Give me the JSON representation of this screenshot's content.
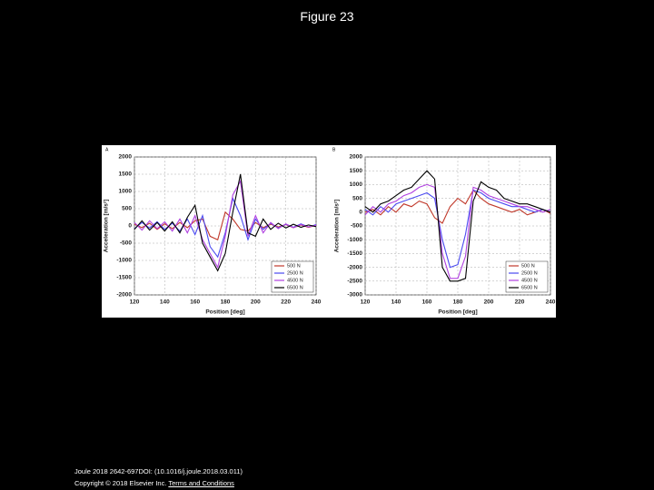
{
  "title": "Figure 23",
  "chart_data": [
    {
      "type": "line",
      "panel_label": "A",
      "x_label": "Position [deg]",
      "y_label": "Acceleration [m/s²]",
      "x": [
        120,
        125,
        130,
        135,
        140,
        145,
        150,
        155,
        160,
        165,
        170,
        175,
        180,
        185,
        190,
        195,
        200,
        205,
        210,
        215,
        220,
        225,
        230,
        235,
        240
      ],
      "series": [
        {
          "name": "500 N",
          "color": "#c0392b",
          "values": [
            50,
            -50,
            80,
            -100,
            60,
            -80,
            100,
            -50,
            150,
            200,
            -300,
            -400,
            400,
            200,
            -100,
            -150,
            100,
            -50,
            50,
            -30,
            40,
            -50,
            30,
            -40,
            20
          ]
        },
        {
          "name": "2500 N",
          "color": "#4a4af0",
          "values": [
            -80,
            100,
            -60,
            120,
            -100,
            80,
            -150,
            200,
            -250,
            300,
            -600,
            -900,
            -200,
            800,
            300,
            -400,
            200,
            -100,
            80,
            -60,
            50,
            -40,
            60,
            -30,
            40
          ]
        },
        {
          "name": "4500 N",
          "color": "#b040e0",
          "values": [
            100,
            -120,
            150,
            -80,
            120,
            -150,
            200,
            -200,
            300,
            -400,
            -800,
            -1200,
            -300,
            900,
            1300,
            -300,
            300,
            -200,
            100,
            -80,
            60,
            -50,
            40,
            -30,
            20
          ]
        },
        {
          "name": "6500 N",
          "color": "#000000",
          "values": [
            -100,
            150,
            -120,
            100,
            -150,
            120,
            -200,
            250,
            600,
            -500,
            -900,
            -1300,
            -800,
            400,
            1500,
            -200,
            -300,
            200,
            -100,
            80,
            -60,
            50,
            -40,
            30,
            -20
          ]
        }
      ],
      "xlim": [
        120,
        240
      ],
      "xticks": [
        120,
        140,
        160,
        180,
        200,
        220,
        240
      ],
      "ylim": [
        -2000,
        2000
      ],
      "yticks": [
        2000,
        1500,
        1000,
        500,
        0,
        -500,
        -1000,
        -1500,
        -2000
      ],
      "grid": true,
      "legend": "lower right"
    },
    {
      "type": "line",
      "panel_label": "B",
      "x_label": "Position [deg]",
      "y_label": "Acceleration [m/s²]",
      "x": [
        120,
        125,
        130,
        135,
        140,
        145,
        150,
        155,
        160,
        165,
        170,
        175,
        180,
        185,
        190,
        195,
        200,
        205,
        210,
        215,
        220,
        225,
        230,
        235,
        240
      ],
      "series": [
        {
          "name": "500 N",
          "color": "#c0392b",
          "values": [
            0,
            100,
            -100,
            200,
            0,
            300,
            200,
            400,
            300,
            -200,
            -400,
            200,
            500,
            300,
            800,
            500,
            300,
            200,
            100,
            0,
            100,
            -100,
            0,
            100,
            -50
          ]
        },
        {
          "name": "2500 N",
          "color": "#4a4af0",
          "values": [
            100,
            -100,
            200,
            0,
            300,
            400,
            500,
            600,
            700,
            500,
            -1000,
            -2000,
            -1900,
            -800,
            800,
            700,
            500,
            400,
            300,
            200,
            200,
            100,
            0,
            100,
            0
          ]
        },
        {
          "name": "4500 N",
          "color": "#b040e0",
          "values": [
            -100,
            200,
            0,
            300,
            400,
            600,
            700,
            900,
            1000,
            900,
            -1500,
            -2400,
            -2400,
            -1600,
            900,
            800,
            600,
            500,
            400,
            300,
            200,
            200,
            100,
            0,
            100
          ]
        },
        {
          "name": "6500 N",
          "color": "#000000",
          "values": [
            200,
            0,
            300,
            400,
            600,
            800,
            900,
            1200,
            1500,
            1200,
            -2000,
            -2500,
            -2500,
            -2400,
            400,
            1100,
            900,
            800,
            500,
            400,
            300,
            300,
            200,
            100,
            0
          ]
        }
      ],
      "xlim": [
        120,
        240
      ],
      "xticks": [
        120,
        140,
        160,
        180,
        200,
        220,
        240
      ],
      "ylim": [
        -3000,
        2000
      ],
      "yticks": [
        2000,
        1500,
        1000,
        500,
        0,
        -500,
        -1000,
        -1500,
        -2000,
        -2500,
        -3000
      ],
      "grid": true,
      "legend": "lower right"
    }
  ],
  "footer": {
    "citation": "Joule 2018 2642-697DOI: (10.1016/j.joule.2018.03.011)",
    "copyright": "Copyright © 2018 Elsevier Inc.",
    "link": "Terms and Conditions"
  }
}
